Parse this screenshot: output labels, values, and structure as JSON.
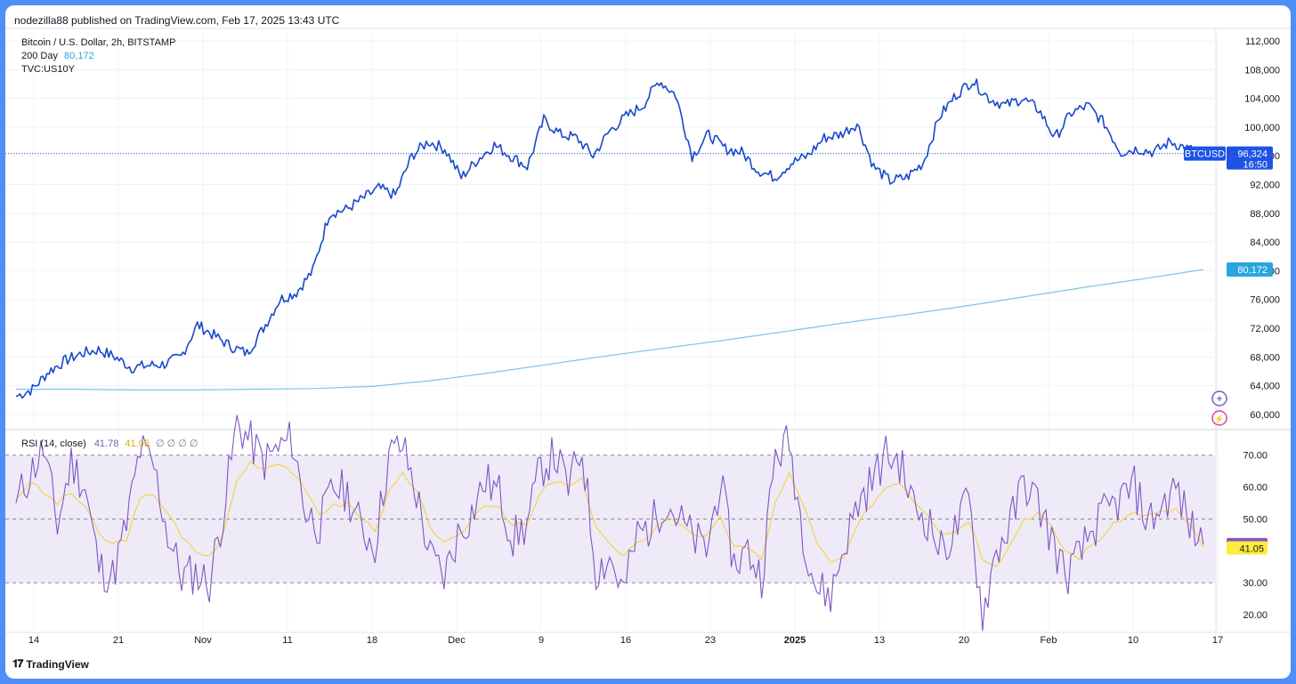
{
  "header": {
    "publisher_line": "nodezilla88 published on TradingView.com, Feb 17, 2025 13:43 UTC"
  },
  "legend": {
    "symbol": "Bitcoin / U.S. Dollar, 2h, BITSTAMP",
    "ma_label": "200 Day",
    "ma_value": "80,172",
    "overlay": "TVC:US10Y",
    "rsi_label": "RSI (14, close)",
    "rsi_value": "41.78",
    "rsi_ma_value": "41.05",
    "rsi_extra": "∅ ∅ ∅ ∅"
  },
  "footer": {
    "brand": "TradingView"
  },
  "colors": {
    "price": "#1848cc",
    "ma": "#7cc4e8",
    "rsi": "#7e57c2",
    "rsi_ma": "#f5d34a",
    "rsi_band": "#efeaf8",
    "ma_tag": "#29a6df",
    "price_tag": "#1e53e5"
  },
  "chart_data": [
    {
      "type": "line",
      "title": "Bitcoin / U.S. Dollar, 2h, BITSTAMP",
      "x_ticks": [
        "14",
        "21",
        "Nov",
        "11",
        "18",
        "Dec",
        "9",
        "16",
        "23",
        "2025",
        "13",
        "20",
        "Feb",
        "10",
        "17"
      ],
      "y_ticks": [
        "60,000",
        "64,000",
        "68,000",
        "72,000",
        "76,000",
        "80,000",
        "84,000",
        "88,000",
        "92,000",
        "96,000",
        "100,000",
        "104,000",
        "108,000",
        "112,000"
      ],
      "ylim": [
        58000,
        113000
      ],
      "series": [
        {
          "name": "BTCUSD",
          "color": "#1848cc",
          "values": [
            62500,
            63500,
            66000,
            67500,
            68500,
            69000,
            68000,
            66500,
            66800,
            67000,
            68000,
            72500,
            71000,
            69500,
            68500,
            72000,
            76000,
            77000,
            80000,
            88000,
            88500,
            90000,
            91500,
            90500,
            96000,
            98000,
            97000,
            93000,
            95500,
            97500,
            96000,
            94500,
            101000,
            99000,
            98500,
            96000,
            99500,
            101500,
            103000,
            106500,
            104500,
            96000,
            99000,
            97000,
            96500,
            94000,
            93000,
            95000,
            96000,
            98500,
            99000,
            100500,
            94500,
            92500,
            93000,
            95000,
            101500,
            104500,
            106500,
            104000,
            103000,
            104000,
            102500,
            98500,
            102000,
            103000,
            100500,
            96500,
            97000,
            96500,
            98000,
            97000,
            96324
          ]
        },
        {
          "name": "200 Day",
          "color": "#7cc4e8",
          "values": [
            63500,
            63500,
            63400,
            63400,
            63500,
            63600,
            63900,
            64700,
            65800,
            67000,
            68200,
            69300,
            70400,
            71600,
            72800,
            73900,
            75100,
            76400,
            77700,
            78900,
            80172
          ]
        }
      ],
      "price_tag": {
        "label": "BTCUSD",
        "value": "96,324",
        "time": "16:50"
      },
      "ma_tag": {
        "value": "80,172"
      }
    },
    {
      "type": "line",
      "title": "RSI (14, close)",
      "y_ticks": [
        "20.00",
        "30.00",
        "40.00",
        "50.00",
        "60.00",
        "70.00"
      ],
      "ylim": [
        15,
        78
      ],
      "band": [
        30,
        70
      ],
      "series": [
        {
          "name": "RSI",
          "color": "#7e57c2",
          "values": [
            55,
            64,
            72,
            48,
            68,
            60,
            35,
            32,
            48,
            72,
            66,
            45,
            32,
            33,
            30,
            52,
            80,
            74,
            68,
            72,
            75,
            52,
            48,
            60,
            58,
            47,
            42,
            70,
            73,
            58,
            38,
            32,
            45,
            52,
            62,
            58,
            44,
            48,
            66,
            70,
            60,
            72,
            34,
            38,
            27,
            45,
            48,
            56,
            50,
            44,
            40,
            62,
            36,
            40,
            32,
            70,
            74,
            46,
            28,
            26,
            42,
            55,
            62,
            70,
            68,
            54,
            50,
            40,
            46,
            56,
            20,
            40,
            48,
            62,
            55,
            44,
            32,
            38,
            47,
            52,
            56,
            60,
            49,
            54,
            60,
            48,
            42
          ]
        },
        {
          "name": "RSI MA",
          "color": "#f5d34a",
          "values": [
            56,
            62,
            58,
            55,
            58,
            54,
            45,
            42,
            44,
            56,
            58,
            52,
            44,
            40,
            38,
            45,
            62,
            68,
            66,
            68,
            65,
            58,
            52,
            54,
            55,
            50,
            47,
            58,
            64,
            58,
            48,
            42,
            44,
            50,
            55,
            54,
            48,
            48,
            58,
            62,
            60,
            62,
            48,
            42,
            38,
            42,
            46,
            50,
            49,
            46,
            44,
            50,
            42,
            40,
            38,
            55,
            64,
            55,
            42,
            36,
            38,
            48,
            55,
            60,
            62,
            56,
            52,
            46,
            46,
            50,
            38,
            36,
            42,
            50,
            52,
            47,
            40,
            38,
            42,
            46,
            50,
            52,
            51,
            52,
            53,
            48,
            41
          ]
        }
      ],
      "rsi_tag": "41.78",
      "rsi_ma_tag": "41.05"
    }
  ]
}
